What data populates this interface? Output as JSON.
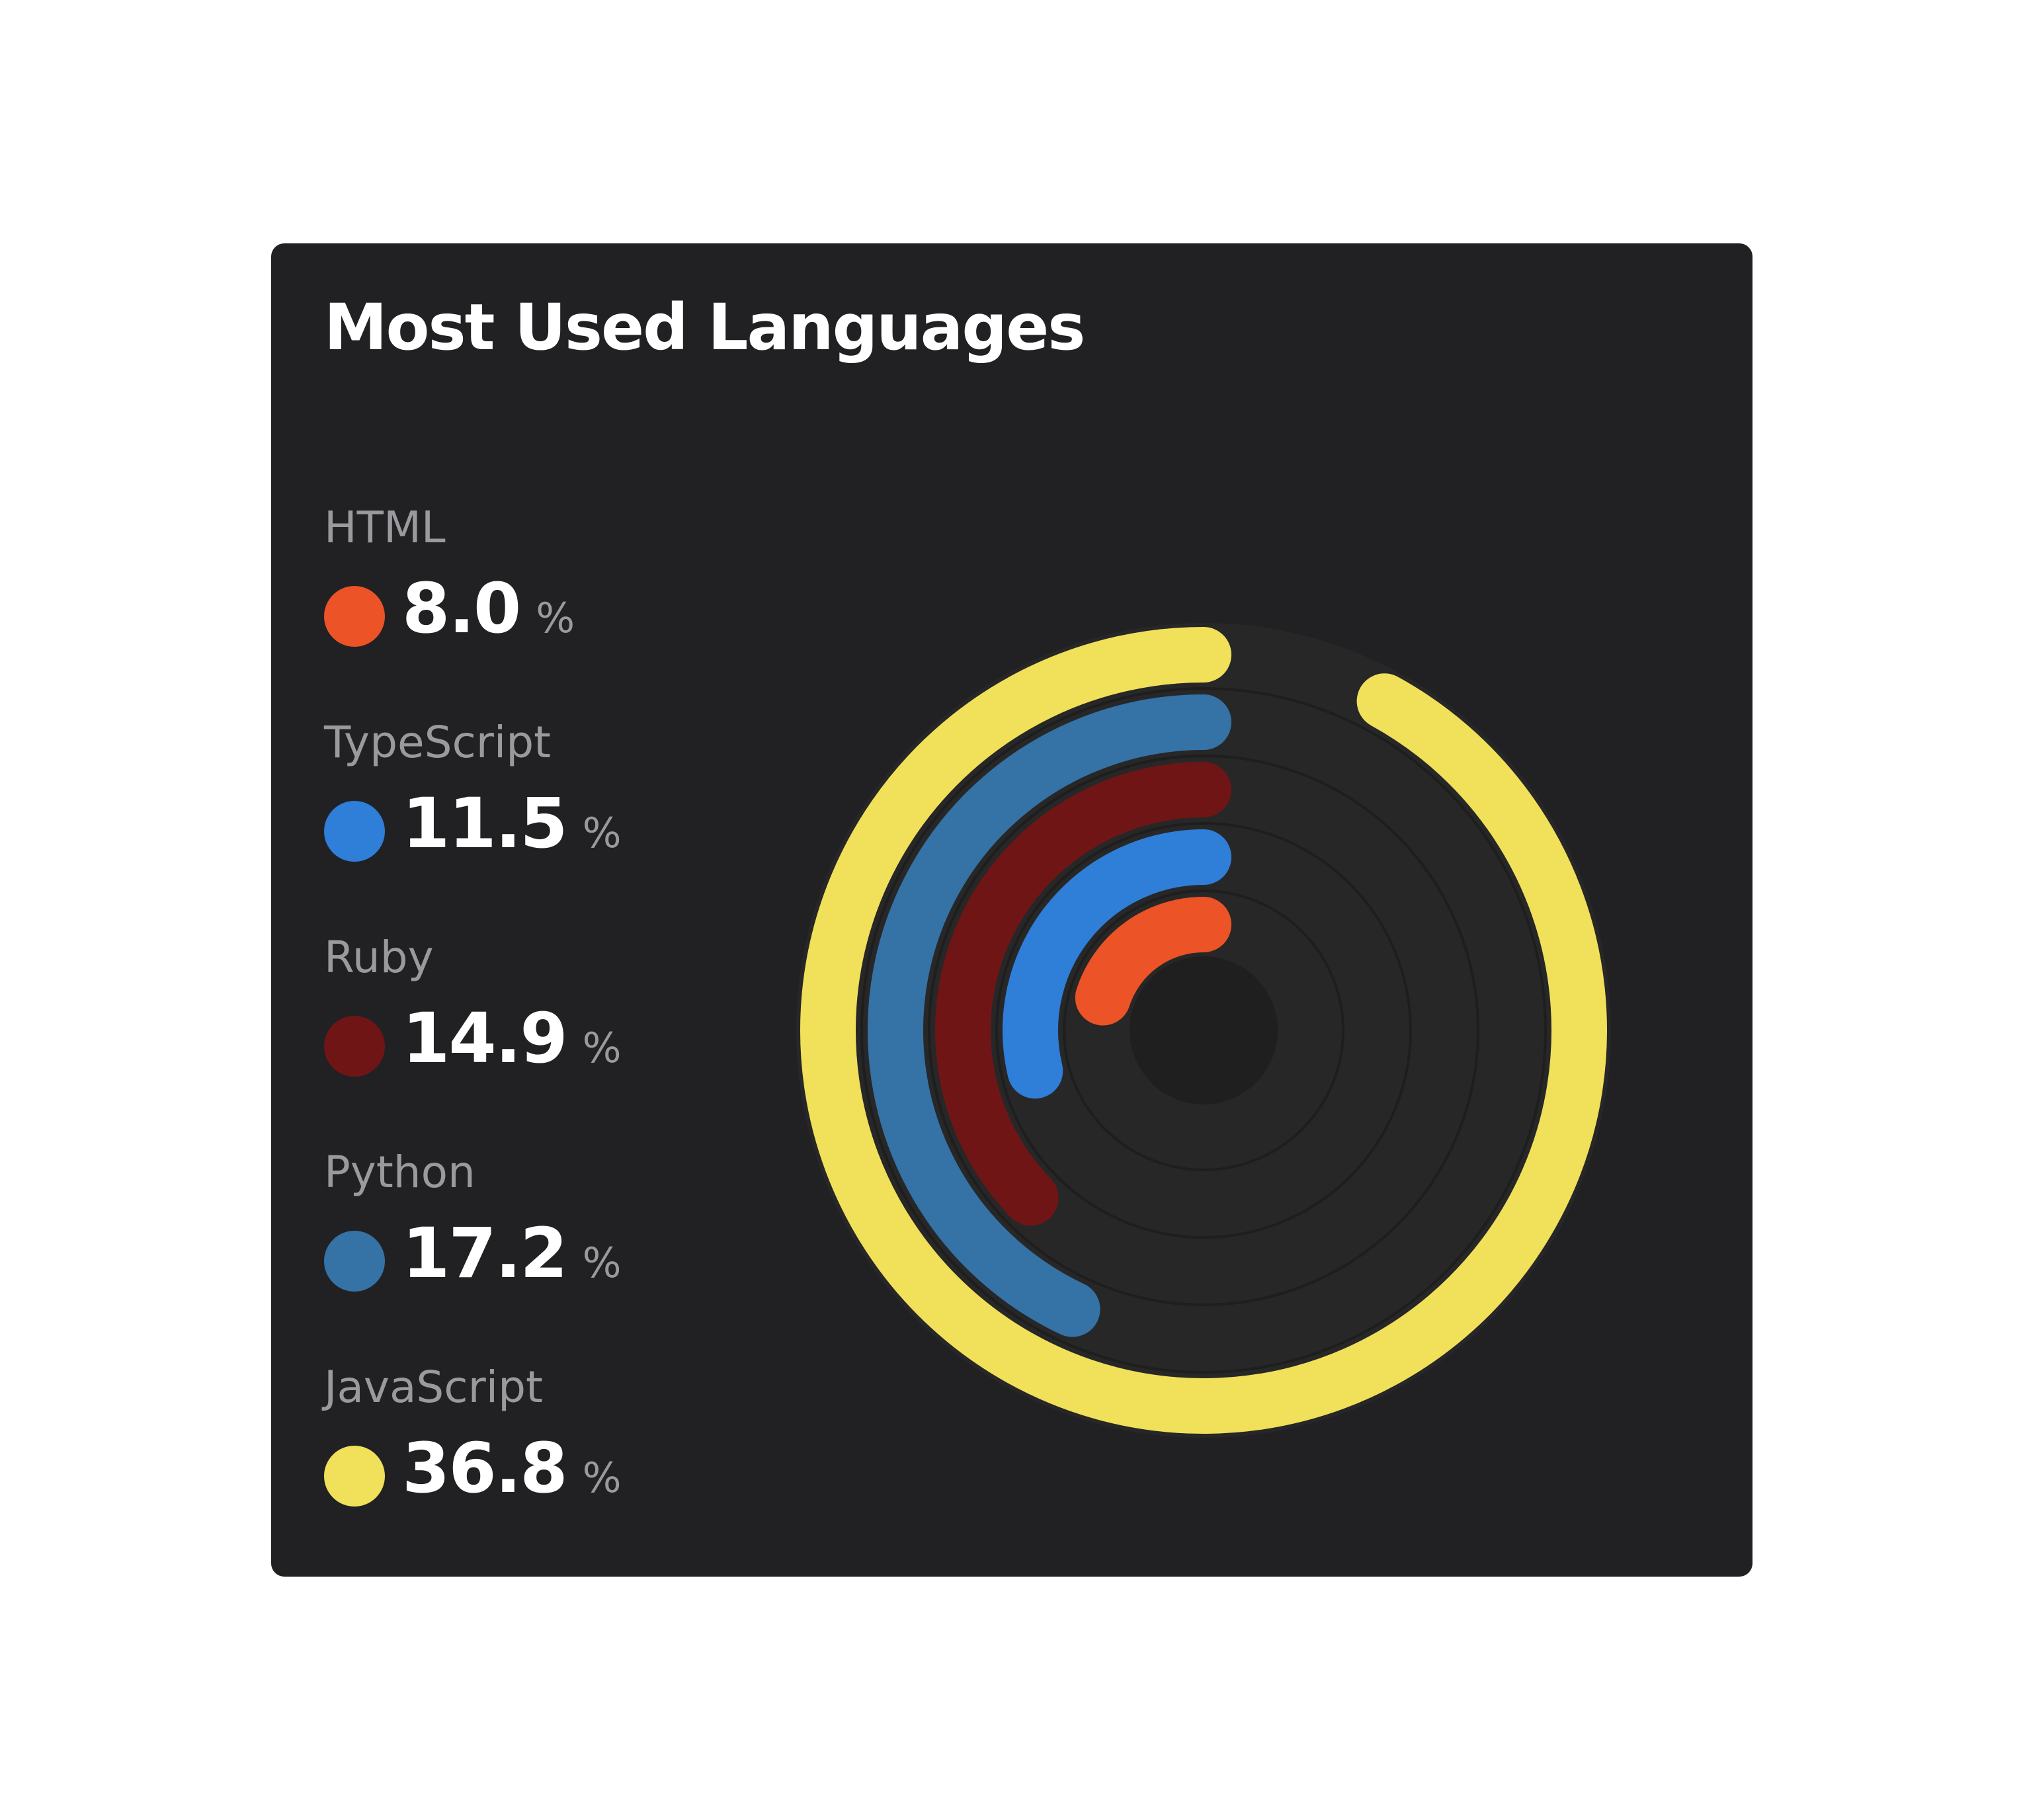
{
  "card": {
    "title": "Most Used Languages"
  },
  "chart_data": {
    "type": "radial-bar",
    "title": "Most Used Languages",
    "unit": "%",
    "grid": true,
    "legend_position": "left",
    "series": [
      {
        "name": "HTML",
        "value": 8.0,
        "display": "8.0",
        "color": "#ec5327"
      },
      {
        "name": "TypeScript",
        "value": 11.5,
        "display": "11.5",
        "color": "#2f7ed8"
      },
      {
        "name": "Ruby",
        "value": 14.9,
        "display": "14.9",
        "color": "#701516"
      },
      {
        "name": "Python",
        "value": 17.2,
        "display": "17.2",
        "color": "#3572a5"
      },
      {
        "name": "JavaScript",
        "value": 36.8,
        "display": "36.8",
        "color": "#f1e05a"
      }
    ]
  }
}
